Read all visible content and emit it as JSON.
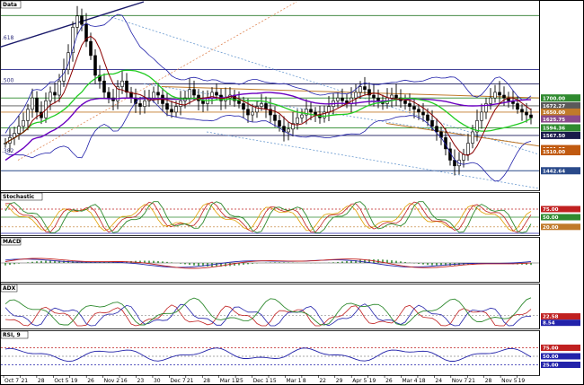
{
  "chart_data": [
    {
      "type": "candlestick",
      "panel": "price",
      "title": "Data",
      "right_axis_labels": [
        "1991.46",
        "1800.54",
        "1750.00",
        "1700.00",
        "1672.27",
        "1650.00",
        "1625.75",
        "1594.36",
        "1567.50",
        "1521.00",
        "1510.00",
        "1442.64"
      ],
      "fib_labels": [
        ".618",
        ".500",
        ".382"
      ],
      "price_range": [
        1380,
        2040
      ],
      "levels": [
        1991.46,
        1800.54,
        1750.0,
        1700.0,
        1672.27,
        1650.0,
        1594.36,
        1567.5,
        1442.64
      ],
      "highlight_labels": [
        {
          "value": "1700.00",
          "color": "#2f8a2f"
        },
        {
          "value": "1672.27",
          "color": "#5a5a5a"
        },
        {
          "value": "1650.00",
          "color": "#c07a2a"
        },
        {
          "value": "1625.75",
          "color": "#8a4a8a"
        },
        {
          "value": "1594.36",
          "color": "#2f8a2f"
        },
        {
          "value": "1567.50",
          "color": "#1a1a4a"
        },
        {
          "value": "1521.00",
          "color": "#c05a10"
        },
        {
          "value": "1510.00",
          "color": "#c05a10"
        },
        {
          "value": "1442.64",
          "color": "#2a4a8a"
        }
      ],
      "x_labels": [
        "Oct 7",
        "21",
        "28",
        "Oct 5",
        "19",
        "26",
        "Nov 2",
        "16",
        "23",
        "30",
        "Dec 7",
        "21",
        "28",
        "Mar 11",
        "25",
        "Dec 1",
        "15",
        "Mar 1",
        "8",
        "22",
        "29",
        "Apr 5",
        "19",
        "26",
        "Mar 4",
        "18",
        "24",
        "Nov 7",
        "21",
        "28",
        "Nov 5",
        "19"
      ],
      "series": [
        {
          "name": "Price",
          "color": "#000000"
        },
        {
          "name": "MA short",
          "color": "#8b0000"
        },
        {
          "name": "MA mid",
          "color": "#22cc22"
        },
        {
          "name": "MA long",
          "color": "#6a00c0"
        },
        {
          "name": "Bollinger",
          "color": "#2222aa"
        }
      ],
      "close": [
        1540,
        1560,
        1575,
        1600,
        1620,
        1660,
        1700,
        1650,
        1630,
        1690,
        1720,
        1710,
        1760,
        1800,
        1860,
        1950,
        1990,
        1960,
        1900,
        1850,
        1780,
        1760,
        1720,
        1700,
        1690,
        1740,
        1760,
        1720,
        1700,
        1680,
        1670,
        1690,
        1700,
        1720,
        1710,
        1680,
        1660,
        1650,
        1670,
        1690,
        1700,
        1730,
        1710,
        1690,
        1680,
        1700,
        1720,
        1710,
        1690,
        1700,
        1710,
        1690,
        1680,
        1660,
        1640,
        1650,
        1670,
        1680,
        1660,
        1640,
        1620,
        1600,
        1580,
        1590,
        1610,
        1630,
        1640,
        1660,
        1650,
        1640,
        1630,
        1650,
        1670,
        1690,
        1700,
        1690,
        1680,
        1700,
        1720,
        1740,
        1730,
        1710,
        1700,
        1690,
        1680,
        1700,
        1710,
        1700,
        1690,
        1680,
        1670,
        1660,
        1650,
        1640,
        1620,
        1600,
        1580,
        1560,
        1520,
        1480,
        1460,
        1480,
        1500,
        1540,
        1580,
        1620,
        1650,
        1680,
        1700,
        1720,
        1710,
        1700,
        1690,
        1680,
        1660,
        1650,
        1640,
        1630
      ]
    },
    {
      "type": "line",
      "panel": "stochastic",
      "title": "Stochastic",
      "right_axis_labels": [
        "100.00",
        "75.00",
        "50.00",
        "20.00",
        "0.00"
      ],
      "highlight_labels": [
        {
          "value": "75.00",
          "color": "#c02020"
        },
        {
          "value": "50.00",
          "color": "#2f8a2f"
        },
        {
          "value": "20.00",
          "color": "#c07a2a"
        }
      ],
      "range": [
        0,
        100
      ],
      "series": [
        {
          "name": "%K",
          "color": "#2f8a2f"
        },
        {
          "name": "%D",
          "color": "#c02020"
        },
        {
          "name": "Slow",
          "color": "#e0a000"
        }
      ]
    },
    {
      "type": "line",
      "panel": "macd",
      "title": "MACD",
      "right_axis_labels": [
        "100.00",
        "0.00",
        "-50.00",
        "-100.00"
      ],
      "range": [
        -100,
        100
      ],
      "series": [
        {
          "name": "MACD",
          "color": "#c02020"
        },
        {
          "name": "Signal",
          "color": "#2222aa"
        },
        {
          "name": "Histogram",
          "color": "#1a7a1a"
        }
      ]
    },
    {
      "type": "line",
      "panel": "adx",
      "title": "ADX",
      "right_axis_labels": [
        "75.00",
        "50.00",
        "25.00",
        "22.58",
        "8.54"
      ],
      "highlight_labels": [
        {
          "value": "22.58",
          "color": "#c02020"
        },
        {
          "value": "8.54",
          "color": "#2222aa"
        }
      ],
      "range": [
        0,
        75
      ],
      "series": [
        {
          "name": "ADX",
          "color": "#2f8a2f"
        },
        {
          "name": "+DI",
          "color": "#2222aa"
        },
        {
          "name": "-DI",
          "color": "#c02020"
        }
      ]
    },
    {
      "type": "line",
      "panel": "rsi",
      "title": "RSI, 9",
      "right_axis_labels": [
        "75.00",
        "50.00",
        "25.00",
        "0.00"
      ],
      "highlight_labels": [
        {
          "value": "75.00",
          "color": "#c02020"
        },
        {
          "value": "50.00",
          "color": "#2222aa"
        },
        {
          "value": "25.00",
          "color": "#2222aa"
        }
      ],
      "range": [
        0,
        100
      ],
      "series": [
        {
          "name": "RSI",
          "color": "#2222aa"
        }
      ]
    }
  ]
}
